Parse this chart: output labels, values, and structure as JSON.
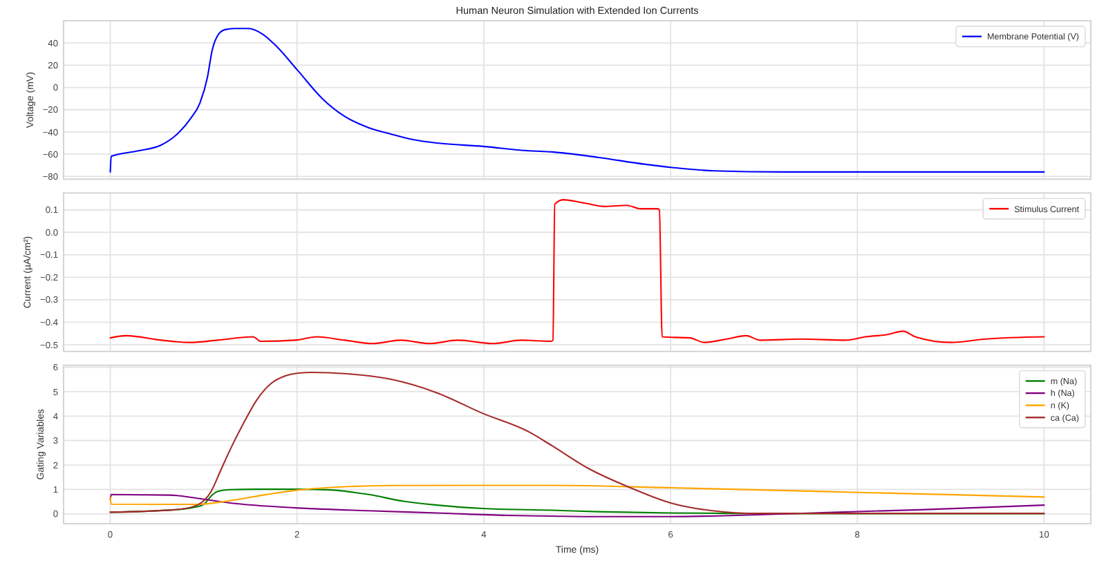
{
  "chart_data": [
    {
      "type": "line",
      "title": "Human Neuron Simulation with Extended Ion Currents",
      "ylabel": "Voltage (mV)",
      "xlim": [
        -0.5,
        10.5
      ],
      "xticks": [
        0,
        2,
        4,
        6,
        8,
        10
      ],
      "ylim": [
        -82.5,
        60
      ],
      "yticks": [
        {
          "value": -80,
          "label": "−80"
        },
        {
          "value": -60,
          "label": "−60"
        },
        {
          "value": -40,
          "label": "−40"
        },
        {
          "value": -20,
          "label": "−20"
        },
        0,
        20,
        40
      ],
      "grid": true,
      "legend": "top right",
      "tick_labels": "y",
      "series": [
        {
          "name": "Membrane Potential (V)",
          "color": "#0000ff",
          "x": [
            0,
            0.01,
            0.3,
            0.54,
            0.74,
            0.86,
            0.96,
            1.04,
            1.09,
            1.16,
            1.23,
            1.33,
            1.48,
            1.63,
            1.78,
            2.01,
            2.27,
            2.51,
            2.76,
            3.01,
            3.25,
            3.5,
            3.99,
            4.49,
            4.73,
            5.23,
            5.72,
            6.02,
            6.46,
            7.2,
            8,
            9,
            10
          ],
          "values": [
            -76,
            -62,
            -57,
            -52,
            -40,
            -28,
            -14,
            9,
            33,
            48,
            52,
            53,
            53,
            48,
            37,
            15,
            -10,
            -26,
            -36,
            -42,
            -47,
            -50,
            -53,
            -57,
            -58,
            -63,
            -69,
            -72,
            -75,
            -76,
            -76,
            -76,
            -76
          ]
        }
      ]
    },
    {
      "type": "line",
      "ylabel": "Current (µA/cm²)",
      "xlim": [
        -0.5,
        10.5
      ],
      "xticks": [
        0,
        2,
        4,
        6,
        8,
        10
      ],
      "ylim": [
        -0.53,
        0.175
      ],
      "yticks": [
        {
          "value": -0.5,
          "label": "−0.5"
        },
        {
          "value": -0.4,
          "label": "−0.4"
        },
        {
          "value": -0.3,
          "label": "−0.3"
        },
        {
          "value": -0.2,
          "label": "−0.2"
        },
        {
          "value": -0.1,
          "label": "−0.1"
        },
        {
          "value": 0,
          "label": "0.0"
        },
        0.1
      ],
      "grid": true,
      "legend": "top right",
      "tick_labels": "y",
      "series": [
        {
          "name": "Stimulus Current",
          "color": "#ff0000",
          "x": [
            0,
            0.17,
            0.55,
            0.85,
            1.15,
            1.53,
            1.61,
            1.98,
            2.21,
            2.51,
            2.81,
            3.11,
            3.42,
            3.72,
            4.1,
            4.4,
            4.72,
            4.74,
            4.76,
            4.85,
            5.08,
            5.3,
            5.53,
            5.68,
            5.86,
            5.88,
            5.91,
            6.21,
            6.36,
            6.6,
            6.81,
            6.96,
            7.4,
            7.87,
            8.09,
            8.32,
            8.49,
            8.62,
            9,
            9.37,
            10
          ],
          "values": [
            -0.47,
            -0.46,
            -0.48,
            -0.49,
            -0.48,
            -0.465,
            -0.485,
            -0.48,
            -0.465,
            -0.48,
            -0.495,
            -0.48,
            -0.495,
            -0.48,
            -0.495,
            -0.48,
            -0.485,
            -0.48,
            0.125,
            0.145,
            0.13,
            0.115,
            0.12,
            0.105,
            0.105,
            0.1,
            -0.465,
            -0.47,
            -0.49,
            -0.475,
            -0.46,
            -0.48,
            -0.475,
            -0.48,
            -0.465,
            -0.455,
            -0.44,
            -0.465,
            -0.49,
            -0.475,
            -0.465
          ]
        }
      ]
    },
    {
      "type": "line",
      "xlabel": "Time (ms)",
      "ylabel": "Gating Variables",
      "xlim": [
        -0.5,
        10.5
      ],
      "xticks": [
        0,
        2,
        4,
        6,
        8,
        10
      ],
      "ylim": [
        -0.4,
        6.08
      ],
      "yticks": [
        0,
        1,
        2,
        3,
        4,
        5,
        6
      ],
      "grid": true,
      "legend": "top right",
      "series": [
        {
          "name": "m (Na)",
          "color": "#008000",
          "x": [
            0,
            0.69,
            0.88,
            1.0,
            1.08,
            1.15,
            1.28,
            1.57,
            2.02,
            2.36,
            2.61,
            2.76,
            3.15,
            3.5,
            3.99,
            4.73,
            5.22,
            6,
            6.7,
            8,
            10
          ],
          "values": [
            0.07,
            0.17,
            0.26,
            0.39,
            0.73,
            0.92,
            0.99,
            1.01,
            1.01,
            0.98,
            0.88,
            0.8,
            0.51,
            0.36,
            0.22,
            0.15,
            0.09,
            0.04,
            0.02,
            0.01,
            0.01
          ]
        },
        {
          "name": "h (Na)",
          "color": "#800080",
          "x": [
            0,
            0.01,
            0.64,
            0.93,
            1.28,
            1.67,
            2.02,
            2.76,
            3.5,
            4.24,
            4.73,
            5.22,
            6,
            6.7,
            7.68,
            8.67,
            10
          ],
          "values": [
            0.6,
            0.79,
            0.77,
            0.64,
            0.45,
            0.32,
            0.24,
            0.13,
            0.04,
            -0.06,
            -0.09,
            -0.11,
            -0.11,
            -0.06,
            0.06,
            0.17,
            0.36
          ]
        },
        {
          "name": "n (K)",
          "color": "#ffa500",
          "x": [
            0,
            0.01,
            0.93,
            1.28,
            1.67,
            2.02,
            2.51,
            3,
            4.73,
            6,
            7.2,
            8.01,
            10
          ],
          "values": [
            0.68,
            0.4,
            0.39,
            0.54,
            0.79,
            0.98,
            1.11,
            1.16,
            1.17,
            1.07,
            0.96,
            0.88,
            0.69
          ]
        },
        {
          "name": "ca (Ca)",
          "color": "#a52a2a",
          "x": [
            0,
            0.69,
            0.93,
            1.08,
            1.18,
            1.28,
            1.43,
            1.57,
            1.72,
            1.87,
            2.02,
            2.16,
            2.51,
            3,
            3.5,
            3.99,
            4.48,
            4.73,
            5.12,
            5.57,
            6,
            6.45,
            6.94,
            8,
            10
          ],
          "values": [
            0.07,
            0.17,
            0.36,
            0.92,
            1.76,
            2.6,
            3.73,
            4.67,
            5.33,
            5.64,
            5.76,
            5.79,
            5.74,
            5.51,
            4.95,
            4.11,
            3.36,
            2.79,
            1.86,
            1.07,
            0.45,
            0.13,
            0.02,
            0.02,
            0.02
          ]
        }
      ]
    }
  ]
}
